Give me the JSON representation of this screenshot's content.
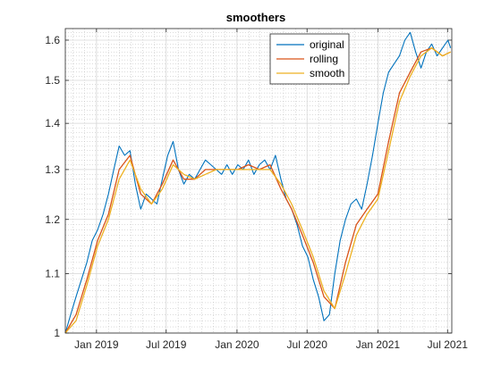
{
  "chart_data": {
    "type": "line",
    "title": "smoothers",
    "xlabel": "",
    "ylabel": "",
    "xlim": [
      "2018-10-12",
      "2021-07-12"
    ],
    "ylim": [
      1.0,
      1.63
    ],
    "yscale": "log",
    "grid": true,
    "minor_grid": true,
    "legend_position": "top-right",
    "x_ticks": [
      {
        "date": "2019-01-01",
        "label": "Jan 2019"
      },
      {
        "date": "2019-07-01",
        "label": "Jul 2019"
      },
      {
        "date": "2020-01-01",
        "label": "Jan 2020"
      },
      {
        "date": "2020-07-01",
        "label": "Jul 2020"
      },
      {
        "date": "2021-01-01",
        "label": "Jan 2021"
      },
      {
        "date": "2021-07-01",
        "label": "Jul 2021"
      }
    ],
    "y_ticks": [
      {
        "value": 1.0,
        "label": "1"
      },
      {
        "value": 1.1,
        "label": "1.1"
      },
      {
        "value": 1.2,
        "label": "1.2"
      },
      {
        "value": 1.3,
        "label": "1.3"
      },
      {
        "value": 1.4,
        "label": "1.4"
      },
      {
        "value": 1.5,
        "label": "1.5"
      },
      {
        "value": 1.6,
        "label": "1.6"
      }
    ],
    "colors": {
      "original": "#0072BD",
      "rolling": "#D95319",
      "smooth": "#EDB120"
    },
    "series": [
      {
        "name": "original",
        "x": [
          "2018-10-12",
          "2018-10-26",
          "2018-11-09",
          "2018-11-23",
          "2018-12-07",
          "2018-12-21",
          "2019-01-04",
          "2019-01-18",
          "2019-02-01",
          "2019-02-15",
          "2019-03-01",
          "2019-03-15",
          "2019-03-29",
          "2019-04-12",
          "2019-04-26",
          "2019-05-10",
          "2019-05-24",
          "2019-06-07",
          "2019-06-21",
          "2019-07-05",
          "2019-07-19",
          "2019-08-02",
          "2019-08-16",
          "2019-08-30",
          "2019-09-13",
          "2019-09-27",
          "2019-10-11",
          "2019-10-25",
          "2019-11-08",
          "2019-11-22",
          "2019-12-06",
          "2019-12-20",
          "2020-01-03",
          "2020-01-17",
          "2020-01-31",
          "2020-02-14",
          "2020-02-28",
          "2020-03-13",
          "2020-03-27",
          "2020-04-10",
          "2020-04-24",
          "2020-05-08",
          "2020-05-22",
          "2020-06-05",
          "2020-06-19",
          "2020-07-03",
          "2020-07-17",
          "2020-07-31",
          "2020-08-14",
          "2020-08-28",
          "2020-09-11",
          "2020-09-25",
          "2020-10-09",
          "2020-10-23",
          "2020-11-06",
          "2020-11-20",
          "2020-12-04",
          "2020-12-18",
          "2021-01-01",
          "2021-01-15",
          "2021-01-29",
          "2021-02-12",
          "2021-02-26",
          "2021-03-12",
          "2021-03-26",
          "2021-04-09",
          "2021-04-23",
          "2021-05-07",
          "2021-05-21",
          "2021-06-04",
          "2021-06-18",
          "2021-07-02",
          "2021-07-09"
        ],
        "values": [
          1.0,
          1.03,
          1.06,
          1.09,
          1.12,
          1.16,
          1.18,
          1.21,
          1.25,
          1.3,
          1.35,
          1.33,
          1.34,
          1.27,
          1.22,
          1.25,
          1.24,
          1.23,
          1.28,
          1.33,
          1.36,
          1.3,
          1.27,
          1.29,
          1.28,
          1.3,
          1.32,
          1.31,
          1.3,
          1.29,
          1.31,
          1.29,
          1.31,
          1.3,
          1.32,
          1.29,
          1.31,
          1.32,
          1.3,
          1.33,
          1.28,
          1.24,
          1.22,
          1.19,
          1.15,
          1.13,
          1.09,
          1.06,
          1.02,
          1.03,
          1.1,
          1.16,
          1.2,
          1.23,
          1.24,
          1.22,
          1.27,
          1.33,
          1.4,
          1.47,
          1.52,
          1.54,
          1.56,
          1.6,
          1.62,
          1.57,
          1.53,
          1.57,
          1.59,
          1.56,
          1.58,
          1.6,
          1.58
        ]
      },
      {
        "name": "rolling",
        "x": [
          "2018-10-12",
          "2018-11-09",
          "2018-12-07",
          "2019-01-04",
          "2019-02-01",
          "2019-03-01",
          "2019-03-29",
          "2019-04-26",
          "2019-05-24",
          "2019-06-21",
          "2019-07-19",
          "2019-08-16",
          "2019-09-13",
          "2019-10-11",
          "2019-11-08",
          "2019-12-06",
          "2020-01-03",
          "2020-01-31",
          "2020-02-28",
          "2020-03-27",
          "2020-04-24",
          "2020-05-22",
          "2020-06-19",
          "2020-07-17",
          "2020-08-14",
          "2020-09-11",
          "2020-10-09",
          "2020-11-06",
          "2020-12-04",
          "2021-01-01",
          "2021-01-29",
          "2021-02-26",
          "2021-03-26",
          "2021-04-23",
          "2021-05-21",
          "2021-06-18",
          "2021-07-09"
        ],
        "values": [
          1.0,
          1.03,
          1.09,
          1.16,
          1.21,
          1.3,
          1.33,
          1.25,
          1.23,
          1.27,
          1.32,
          1.28,
          1.28,
          1.3,
          1.3,
          1.3,
          1.3,
          1.31,
          1.3,
          1.31,
          1.26,
          1.22,
          1.17,
          1.12,
          1.06,
          1.04,
          1.12,
          1.19,
          1.22,
          1.25,
          1.36,
          1.47,
          1.52,
          1.57,
          1.58,
          1.56,
          1.57
        ]
      },
      {
        "name": "smooth",
        "x": [
          "2018-10-12",
          "2018-11-09",
          "2018-12-07",
          "2019-01-04",
          "2019-02-01",
          "2019-03-01",
          "2019-03-29",
          "2019-04-26",
          "2019-05-24",
          "2019-06-21",
          "2019-07-19",
          "2019-08-16",
          "2019-09-13",
          "2019-10-11",
          "2019-11-08",
          "2019-12-06",
          "2020-01-03",
          "2020-01-31",
          "2020-02-28",
          "2020-03-27",
          "2020-04-24",
          "2020-05-22",
          "2020-06-19",
          "2020-07-17",
          "2020-08-14",
          "2020-09-11",
          "2020-10-09",
          "2020-11-06",
          "2020-12-04",
          "2021-01-01",
          "2021-01-29",
          "2021-02-26",
          "2021-03-26",
          "2021-04-23",
          "2021-05-21",
          "2021-06-18",
          "2021-07-09"
        ],
        "values": [
          1.0,
          1.02,
          1.08,
          1.15,
          1.2,
          1.28,
          1.32,
          1.26,
          1.23,
          1.26,
          1.31,
          1.29,
          1.28,
          1.29,
          1.3,
          1.3,
          1.3,
          1.3,
          1.3,
          1.3,
          1.27,
          1.23,
          1.18,
          1.13,
          1.07,
          1.04,
          1.1,
          1.17,
          1.21,
          1.24,
          1.34,
          1.45,
          1.51,
          1.56,
          1.58,
          1.56,
          1.57
        ]
      }
    ]
  }
}
